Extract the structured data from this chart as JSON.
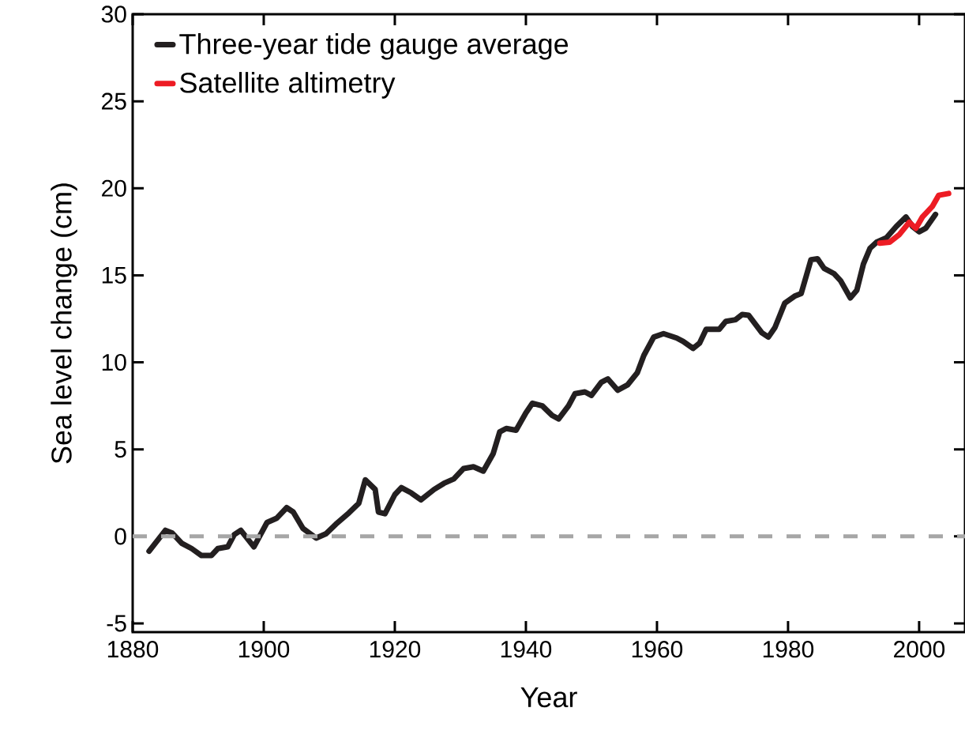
{
  "chart_data": {
    "type": "line",
    "xlabel": "Year",
    "ylabel": "Sea level change (cm)",
    "xlim": [
      1880,
      2007
    ],
    "ylim": [
      -5.5,
      30
    ],
    "xticks": [
      1880,
      1900,
      1920,
      1940,
      1960,
      1980,
      2000
    ],
    "yticks": [
      -5,
      0,
      5,
      10,
      15,
      20,
      25,
      30
    ],
    "legend": "top left",
    "grid": false,
    "line_style": "solid",
    "ref_lines": [
      {
        "axis": "y",
        "value": 0,
        "color": "#a6a6a6",
        "line_style": "dashed"
      }
    ],
    "series": [
      {
        "name": "Three-year tide gauge average",
        "color": "#231f20",
        "x": [
          1882.5,
          1885,
          1886,
          1887.5,
          1889,
          1890.5,
          1892,
          1893,
          1894.5,
          1895.5,
          1896.5,
          1898.5,
          1900.5,
          1902,
          1903.5,
          1904.5,
          1906,
          1908,
          1909.5,
          1911,
          1913,
          1914.5,
          1915.5,
          1917,
          1917.5,
          1918.5,
          1920,
          1921,
          1922.5,
          1924,
          1926,
          1927.5,
          1929,
          1930.5,
          1932,
          1933.5,
          1935,
          1936,
          1937,
          1938.5,
          1940,
          1941,
          1942.5,
          1944,
          1945,
          1946.5,
          1947.5,
          1949,
          1950,
          1951.5,
          1952.5,
          1954,
          1955.5,
          1957,
          1958,
          1959.5,
          1961,
          1963,
          1964,
          1965.5,
          1966.5,
          1967.5,
          1969.5,
          1970.5,
          1972,
          1973,
          1974,
          1976,
          1977,
          1978,
          1979.5,
          1981,
          1982,
          1983.5,
          1984.5,
          1985.5,
          1987,
          1988,
          1989.5,
          1990.5,
          1991.5,
          1992.5,
          1993.5,
          1995,
          1996.5,
          1998,
          1999,
          2000,
          2001,
          2002.5
        ],
        "values": [
          -0.85,
          0.35,
          0.2,
          -0.4,
          -0.7,
          -1.1,
          -1.1,
          -0.7,
          -0.6,
          0.1,
          0.35,
          -0.6,
          0.8,
          1.05,
          1.65,
          1.4,
          0.45,
          -0.1,
          0.15,
          0.7,
          1.35,
          1.9,
          3.25,
          2.7,
          1.4,
          1.3,
          2.4,
          2.8,
          2.5,
          2.1,
          2.7,
          3.05,
          3.3,
          3.9,
          4.0,
          3.75,
          4.75,
          6.0,
          6.2,
          6.1,
          7.1,
          7.65,
          7.5,
          6.95,
          6.75,
          7.5,
          8.2,
          8.3,
          8.1,
          8.85,
          9.05,
          8.4,
          8.7,
          9.4,
          10.4,
          11.45,
          11.65,
          11.4,
          11.2,
          10.8,
          11.1,
          11.9,
          11.9,
          12.35,
          12.45,
          12.75,
          12.7,
          11.7,
          11.45,
          12.0,
          13.4,
          13.8,
          13.95,
          15.9,
          15.95,
          15.4,
          15.1,
          14.7,
          13.7,
          14.15,
          15.65,
          16.55,
          16.9,
          17.15,
          17.8,
          18.35,
          17.8,
          17.5,
          17.7,
          18.5
        ]
      },
      {
        "name": "Satellite altimetry",
        "color": "#ed1c24",
        "x": [
          1994,
          1995.5,
          1997,
          1998.5,
          1999.5,
          2000.5,
          2002,
          2003,
          2004.5
        ],
        "values": [
          16.85,
          16.9,
          17.35,
          18.05,
          17.7,
          18.35,
          18.95,
          19.6,
          19.7
        ]
      }
    ]
  }
}
